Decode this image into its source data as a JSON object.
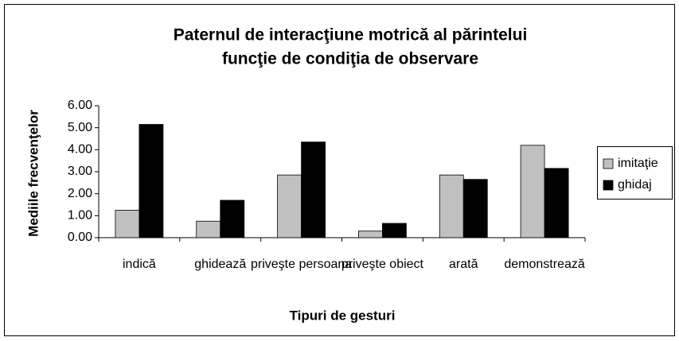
{
  "chart_data": {
    "type": "bar",
    "title": [
      "Paternul de interacţiune motrică  al părintelui",
      "funcţie de condiţia de observare"
    ],
    "x_label": "Tipuri de gesturi",
    "y_label": "Mediile frecvenţelor",
    "categories": [
      "indică",
      "ghidează",
      "priveşte persoana",
      "priveşte obiect",
      "arată",
      "demonstrează"
    ],
    "series": [
      {
        "name": "imitaţie",
        "color": "#c0c0c0",
        "values": [
          1.25,
          0.75,
          2.85,
          0.3,
          2.85,
          4.2
        ]
      },
      {
        "name": "ghidaj",
        "color": "#000000",
        "values": [
          5.15,
          1.7,
          4.35,
          0.65,
          2.65,
          3.15
        ]
      }
    ],
    "ylim": [
      0,
      6
    ],
    "yticks": [
      {
        "value": 0,
        "label": "0.00"
      },
      {
        "value": 1,
        "label": "1.00"
      },
      {
        "value": 2,
        "label": "2.00"
      },
      {
        "value": 3,
        "label": "3.00"
      },
      {
        "value": 4,
        "label": "4.00"
      },
      {
        "value": 5,
        "label": "5.00"
      },
      {
        "value": 6,
        "label": "6.00"
      }
    ],
    "legend": "right"
  }
}
